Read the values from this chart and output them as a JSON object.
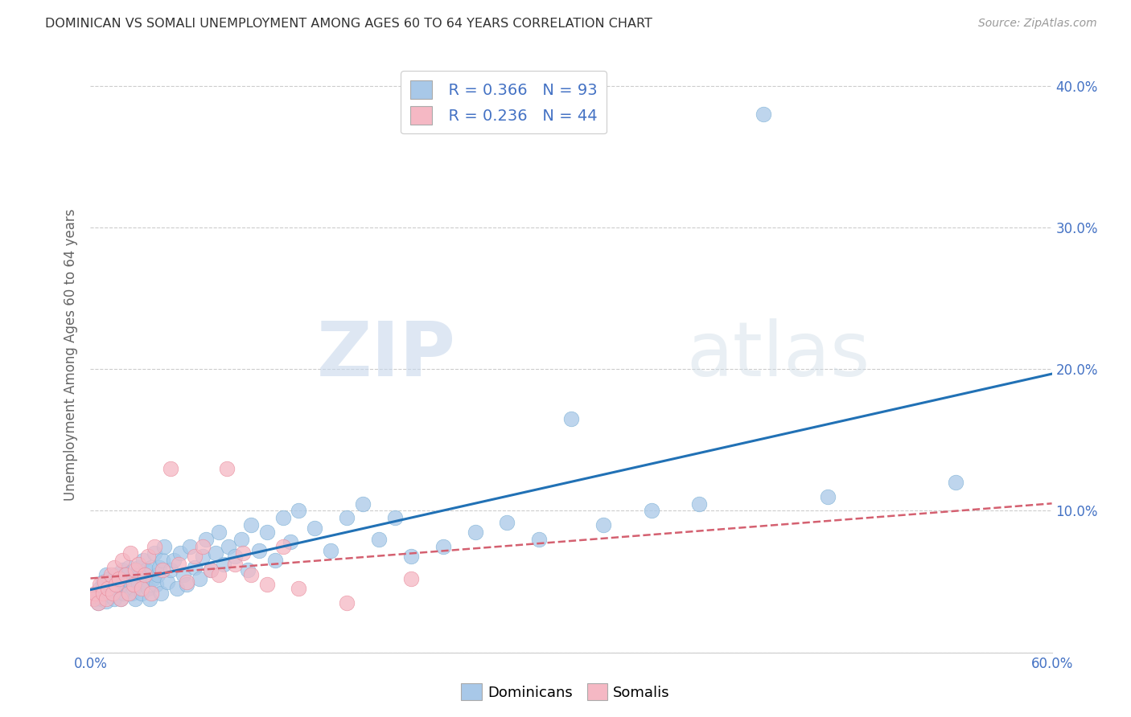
{
  "title": "DOMINICAN VS SOMALI UNEMPLOYMENT AMONG AGES 60 TO 64 YEARS CORRELATION CHART",
  "source": "Source: ZipAtlas.com",
  "ylabel": "Unemployment Among Ages 60 to 64 years",
  "xlim": [
    0.0,
    0.6
  ],
  "ylim": [
    0.0,
    0.42
  ],
  "xticks": [
    0.0,
    0.1,
    0.2,
    0.3,
    0.4,
    0.5,
    0.6
  ],
  "yticks": [
    0.0,
    0.1,
    0.2,
    0.3,
    0.4
  ],
  "xticklabels": [
    "0.0%",
    "",
    "",
    "",
    "",
    "",
    "60.0%"
  ],
  "yticklabels_right": [
    "",
    "10.0%",
    "20.0%",
    "30.0%",
    "40.0%"
  ],
  "dominican_color": "#a8c8e8",
  "dominican_edge_color": "#7aafd4",
  "somali_color": "#f5b8c4",
  "somali_edge_color": "#e8899a",
  "dominican_line_color": "#2171b5",
  "somali_line_color": "#d46070",
  "R_dominican": 0.366,
  "N_dominican": 93,
  "R_somali": 0.236,
  "N_somali": 44,
  "legend_label_dominican": "Dominicans",
  "legend_label_somali": "Somalis",
  "watermark_zip": "ZIP",
  "watermark_atlas": "atlas",
  "background_color": "#ffffff",
  "grid_color": "#cccccc",
  "title_color": "#333333",
  "source_color": "#999999",
  "tick_color": "#4472c4",
  "ylabel_color": "#666666",
  "dominican_x": [
    0.002,
    0.003,
    0.004,
    0.005,
    0.006,
    0.007,
    0.008,
    0.009,
    0.01,
    0.01,
    0.011,
    0.012,
    0.013,
    0.014,
    0.015,
    0.016,
    0.017,
    0.018,
    0.019,
    0.02,
    0.02,
    0.021,
    0.022,
    0.023,
    0.024,
    0.025,
    0.026,
    0.027,
    0.028,
    0.029,
    0.03,
    0.03,
    0.031,
    0.032,
    0.033,
    0.034,
    0.035,
    0.036,
    0.037,
    0.038,
    0.039,
    0.04,
    0.041,
    0.042,
    0.043,
    0.044,
    0.045,
    0.046,
    0.048,
    0.05,
    0.052,
    0.054,
    0.056,
    0.058,
    0.06,
    0.062,
    0.065,
    0.068,
    0.07,
    0.072,
    0.075,
    0.078,
    0.08,
    0.083,
    0.086,
    0.09,
    0.094,
    0.098,
    0.1,
    0.105,
    0.11,
    0.115,
    0.12,
    0.125,
    0.13,
    0.14,
    0.15,
    0.16,
    0.17,
    0.18,
    0.19,
    0.2,
    0.22,
    0.24,
    0.26,
    0.28,
    0.3,
    0.32,
    0.35,
    0.38,
    0.42,
    0.46,
    0.54
  ],
  "dominican_y": [
    0.04,
    0.038,
    0.042,
    0.035,
    0.045,
    0.038,
    0.05,
    0.043,
    0.036,
    0.055,
    0.048,
    0.052,
    0.04,
    0.044,
    0.038,
    0.055,
    0.042,
    0.047,
    0.038,
    0.052,
    0.058,
    0.042,
    0.055,
    0.048,
    0.06,
    0.05,
    0.042,
    0.045,
    0.038,
    0.052,
    0.06,
    0.048,
    0.055,
    0.042,
    0.065,
    0.05,
    0.058,
    0.045,
    0.038,
    0.06,
    0.052,
    0.07,
    0.048,
    0.055,
    0.06,
    0.042,
    0.065,
    0.075,
    0.05,
    0.058,
    0.065,
    0.045,
    0.07,
    0.055,
    0.048,
    0.075,
    0.06,
    0.052,
    0.068,
    0.08,
    0.058,
    0.07,
    0.085,
    0.062,
    0.075,
    0.068,
    0.08,
    0.058,
    0.09,
    0.072,
    0.085,
    0.065,
    0.095,
    0.078,
    0.1,
    0.088,
    0.072,
    0.095,
    0.105,
    0.08,
    0.095,
    0.068,
    0.075,
    0.085,
    0.092,
    0.08,
    0.165,
    0.09,
    0.1,
    0.105,
    0.38,
    0.11,
    0.12
  ],
  "somali_x": [
    0.001,
    0.002,
    0.003,
    0.005,
    0.006,
    0.008,
    0.009,
    0.01,
    0.011,
    0.013,
    0.014,
    0.015,
    0.016,
    0.018,
    0.019,
    0.02,
    0.022,
    0.024,
    0.025,
    0.027,
    0.028,
    0.03,
    0.032,
    0.034,
    0.036,
    0.038,
    0.04,
    0.045,
    0.05,
    0.055,
    0.06,
    0.065,
    0.07,
    0.075,
    0.08,
    0.085,
    0.09,
    0.095,
    0.1,
    0.11,
    0.12,
    0.13,
    0.16,
    0.2
  ],
  "somali_y": [
    0.04,
    0.038,
    0.042,
    0.035,
    0.048,
    0.042,
    0.05,
    0.038,
    0.045,
    0.055,
    0.042,
    0.06,
    0.048,
    0.052,
    0.038,
    0.065,
    0.055,
    0.042,
    0.07,
    0.048,
    0.058,
    0.062,
    0.045,
    0.055,
    0.068,
    0.042,
    0.075,
    0.058,
    0.13,
    0.062,
    0.05,
    0.068,
    0.075,
    0.058,
    0.055,
    0.13,
    0.062,
    0.07,
    0.055,
    0.048,
    0.075,
    0.045,
    0.035,
    0.052
  ]
}
